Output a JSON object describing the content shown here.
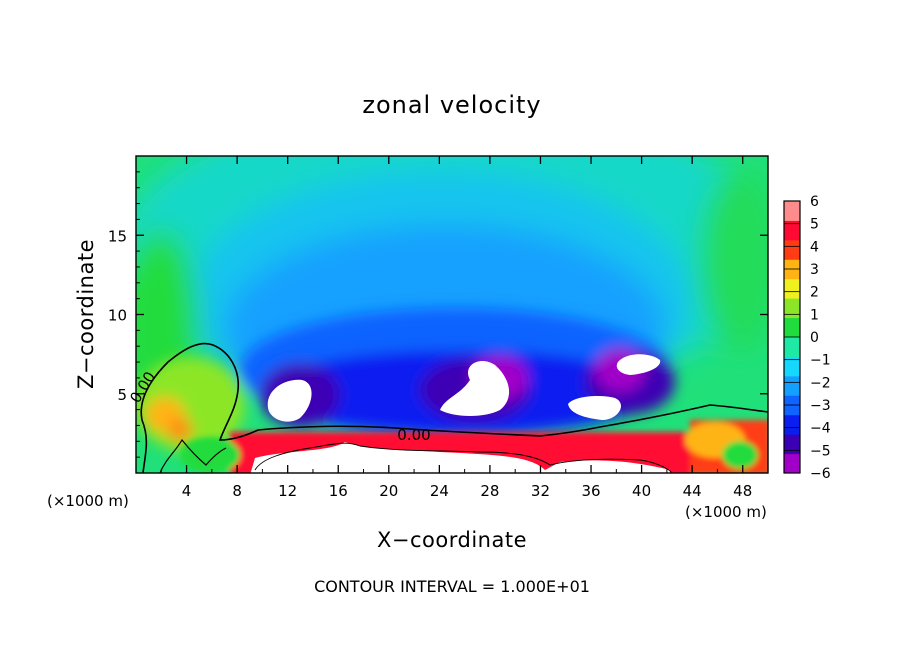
{
  "chart_data": {
    "type": "heatmap",
    "title": "zonal velocity",
    "xlabel": "X−coordinate",
    "ylabel": "Z−coordinate",
    "x_unit_left": "(×1000 m)",
    "x_unit_right": "(×1000 m)",
    "xlim": [
      0,
      50
    ],
    "ylim": [
      0,
      20
    ],
    "x_ticks": [
      4,
      8,
      12,
      16,
      20,
      24,
      28,
      32,
      36,
      40,
      44,
      48
    ],
    "y_ticks": [
      5,
      10,
      15
    ],
    "colorbar": {
      "min": -6,
      "max": 6,
      "labels": [
        "6",
        "5",
        "4",
        "3",
        "2",
        "1",
        "0",
        "−1",
        "−2",
        "−3",
        "−4",
        "−5",
        "−6"
      ],
      "colors": [
        "#a000c8",
        "#3c00b4",
        "#0a1ef0",
        "#0f64ff",
        "#14a0ff",
        "#16d8ff",
        "#1eeaa6",
        "#20dc3c",
        "#8ce628",
        "#f0f01e",
        "#ffb414",
        "#ff3c14",
        "#ff0a32",
        "#ff8c8c"
      ]
    },
    "contour_labels": [
      {
        "text": "0.00",
        "x": 1.6,
        "z": 5.6
      },
      {
        "text": "0.00",
        "x": 22.2,
        "z": 2.1
      }
    ],
    "annotation": "CONTOUR INTERVAL =  1.000E+01"
  }
}
